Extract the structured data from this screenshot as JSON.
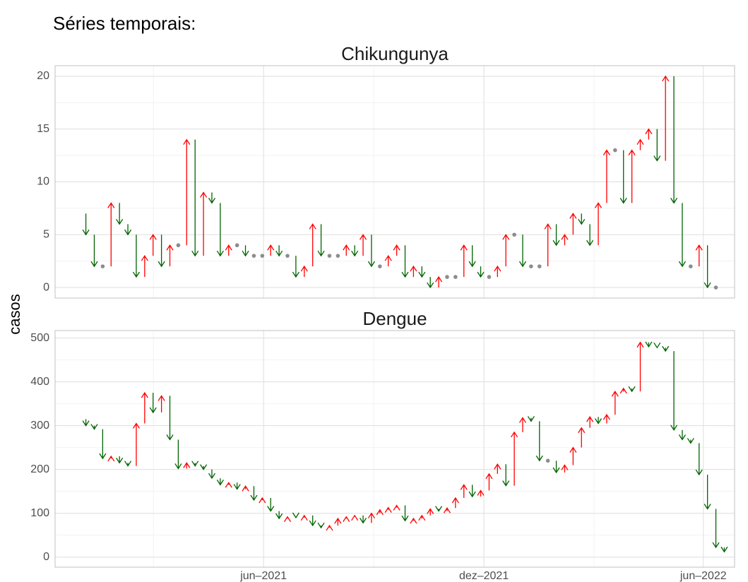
{
  "title": "Séries temporais:",
  "y_label": "casos",
  "chart_data": [
    {
      "type": "arrow",
      "title": "Chikungunya",
      "colors": {
        "up": "#ff0000",
        "down": "#006400",
        "equal": "#8c8c8c"
      },
      "x": [
        2021.01,
        2021.0291,
        2021.0482,
        2021.0673,
        2021.0864,
        2021.1055,
        2021.1246,
        2021.1437,
        2021.1628,
        2021.1819,
        2021.201,
        2021.2201,
        2021.2392,
        2021.2583,
        2021.2774,
        2021.2965,
        2021.3156,
        2021.3347,
        2021.3538,
        2021.3729,
        2021.392,
        2021.4111,
        2021.4302,
        2021.4493,
        2021.4684,
        2021.4875,
        2021.5066,
        2021.5257,
        2021.5448,
        2021.5639,
        2021.583,
        2021.6021,
        2021.6212,
        2021.6403,
        2021.6594,
        2021.6785,
        2021.6976,
        2021.7167,
        2021.7358,
        2021.7549,
        2021.774,
        2021.7931,
        2021.8122,
        2021.8313,
        2021.8504,
        2021.8695,
        2021.8886,
        2021.9077,
        2021.9268,
        2021.9459,
        2021.965,
        2021.9841,
        2022.0032,
        2022.0223,
        2022.0414,
        2022.0605,
        2022.0796,
        2022.0987,
        2022.1178,
        2022.1369,
        2022.156,
        2022.1751,
        2022.1942,
        2022.2133,
        2022.2324,
        2022.2515,
        2022.2706,
        2022.2897,
        2022.3088,
        2022.3279,
        2022.347,
        2022.3661,
        2022.3852,
        2022.4043,
        2022.4234,
        2022.4425
      ],
      "start": 7,
      "values": [
        5,
        2,
        2,
        8,
        6,
        5,
        1,
        3,
        5,
        2,
        4,
        4,
        14,
        3,
        9,
        8,
        3,
        4,
        4,
        3,
        3,
        3,
        4,
        3,
        3,
        1,
        2,
        6,
        3,
        3,
        3,
        4,
        3,
        5,
        2,
        2,
        3,
        4,
        1,
        2,
        1,
        0,
        1,
        1,
        1,
        4,
        2,
        1,
        1,
        2,
        5,
        5,
        2,
        2,
        2,
        6,
        4,
        5,
        7,
        6,
        4,
        8,
        13,
        13,
        8,
        13,
        14,
        15,
        12,
        20,
        8,
        2,
        2,
        4,
        0,
        0
      ],
      "xlim": [
        2020.94,
        2022.485
      ],
      "ylim": [
        -1,
        21
      ],
      "yticks": [
        0,
        5,
        10,
        15,
        20
      ],
      "grid": true
    },
    {
      "type": "arrow",
      "title": "Dengue",
      "colors": {
        "up": "#ff0000",
        "down": "#006400",
        "equal": "#8c8c8c"
      },
      "x": [
        2021.01,
        2021.0291,
        2021.0482,
        2021.0673,
        2021.0864,
        2021.1055,
        2021.1246,
        2021.1437,
        2021.1628,
        2021.1819,
        2021.201,
        2021.2201,
        2021.2392,
        2021.2583,
        2021.2774,
        2021.2965,
        2021.3156,
        2021.3347,
        2021.3538,
        2021.3729,
        2021.392,
        2021.4111,
        2021.4302,
        2021.4493,
        2021.4684,
        2021.4875,
        2021.5066,
        2021.5257,
        2021.5448,
        2021.5639,
        2021.583,
        2021.6021,
        2021.6212,
        2021.6403,
        2021.6594,
        2021.6785,
        2021.6976,
        2021.7167,
        2021.7358,
        2021.7549,
        2021.774,
        2021.7931,
        2021.8122,
        2021.8313,
        2021.8504,
        2021.8695,
        2021.8886,
        2021.9077,
        2021.9268,
        2021.9459,
        2021.965,
        2021.9841,
        2022.0032,
        2022.0223,
        2022.0414,
        2022.0605,
        2022.0796,
        2022.0987,
        2022.1178,
        2022.1369,
        2022.156,
        2022.1751,
        2022.1942,
        2022.2133,
        2022.2324,
        2022.2515,
        2022.2706,
        2022.2897,
        2022.3088,
        2022.3279,
        2022.347,
        2022.3661,
        2022.3852,
        2022.4043,
        2022.4234,
        2022.4425,
        2022.4616
      ],
      "start": 315,
      "values": [
        300,
        292,
        225,
        230,
        215,
        208,
        305,
        375,
        330,
        368,
        268,
        202,
        215,
        208,
        200,
        180,
        165,
        170,
        155,
        162,
        130,
        135,
        105,
        88,
        92,
        90,
        95,
        72,
        67,
        72,
        88,
        92,
        95,
        78,
        100,
        108,
        113,
        118,
        83,
        88,
        95,
        110,
        105,
        112,
        135,
        165,
        138,
        152,
        190,
        212,
        163,
        285,
        318,
        310,
        220,
        220,
        193,
        210,
        250,
        295,
        320,
        305,
        325,
        378,
        385,
        378,
        490,
        480,
        478,
        470,
        290,
        268,
        260,
        188,
        110,
        22,
        12
      ],
      "xlim": [
        2020.94,
        2022.485
      ],
      "ylim": [
        -23,
        517
      ],
      "yticks": [
        0,
        100,
        200,
        300,
        400,
        500
      ],
      "xticks": [
        {
          "value": 2021.414,
          "label": "jun–2021"
        },
        {
          "value": 2021.915,
          "label": "dez–2021"
        },
        {
          "value": 2022.414,
          "label": "jun–2022"
        }
      ],
      "grid": true
    }
  ]
}
